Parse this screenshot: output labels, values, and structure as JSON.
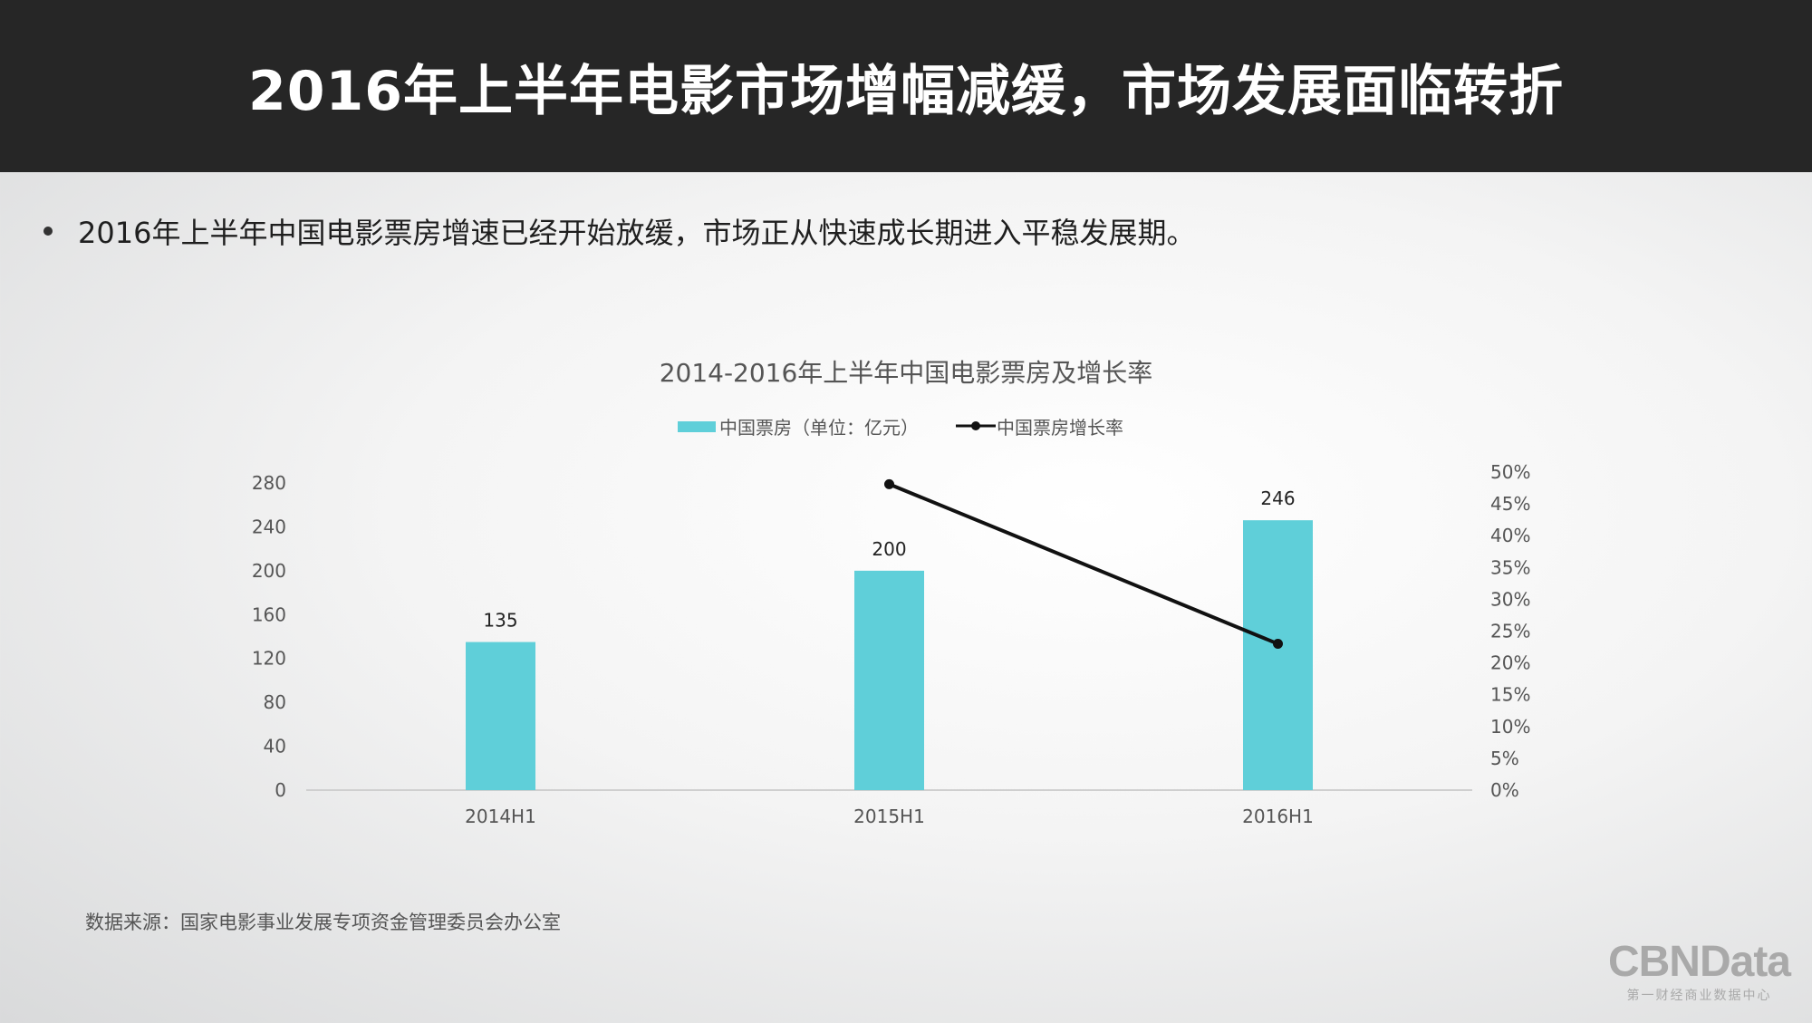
{
  "header": {
    "title": "2016年上半年电影市场增幅减缓，市场发展面临转折"
  },
  "bullet": {
    "text": "2016年上半年中国电影票房增速已经开始放缓，市场正从快速成长期进入平稳发展期。"
  },
  "source": {
    "text": "数据来源：国家电影事业发展专项资金管理委员会办公室"
  },
  "logo": {
    "brand": "CBNData",
    "sub": "第一财经商业数据中心"
  },
  "colors": {
    "bar": "#5fcfd9",
    "line": "#111111",
    "header_bg": "#262626"
  },
  "chart_data": {
    "type": "bar",
    "title": "2014-2016年上半年中国电影票房及增长率",
    "categories": [
      "2014H1",
      "2015H1",
      "2016H1"
    ],
    "series": [
      {
        "name": "中国票房（单位：亿元）",
        "type": "bar",
        "axis": "left",
        "values": [
          135,
          200,
          246
        ],
        "data_labels": [
          "135",
          "200",
          "246"
        ]
      },
      {
        "name": "中国票房增长率",
        "type": "line",
        "axis": "right",
        "values": [
          null,
          48.1,
          23.0
        ]
      }
    ],
    "y_left": {
      "min": 0,
      "max": 280,
      "ticks": [
        "0",
        "40",
        "80",
        "120",
        "160",
        "200",
        "240",
        "280"
      ]
    },
    "y_right": {
      "min": 0,
      "max": 50,
      "ticks": [
        "0%",
        "5%",
        "10%",
        "15%",
        "20%",
        "25%",
        "30%",
        "35%",
        "40%",
        "45%",
        "50%"
      ]
    },
    "legend_position": "top-center",
    "grid": false
  }
}
